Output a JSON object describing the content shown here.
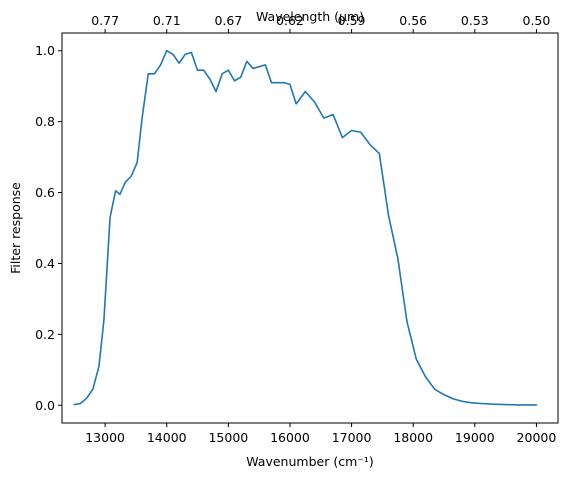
{
  "chart_data": {
    "type": "line",
    "xlabel": "Wavenumber (cm⁻¹)",
    "ylabel": "Filter response",
    "top_xlabel": "Wavelength (μm)",
    "xlim": [
      12300,
      20350
    ],
    "ylim": [
      -0.05,
      1.05
    ],
    "x_ticks": [
      13000,
      14000,
      15000,
      16000,
      17000,
      18000,
      19000,
      20000
    ],
    "y_ticks": [
      0.0,
      0.2,
      0.4,
      0.6,
      0.8,
      1.0
    ],
    "y_tick_labels": [
      "0.0",
      "0.2",
      "0.4",
      "0.6",
      "0.8",
      "1.0"
    ],
    "top_ticks": [
      {
        "wavenumber": 13000,
        "label": "0.77"
      },
      {
        "wavenumber": 14000,
        "label": "0.71"
      },
      {
        "wavenumber": 15000,
        "label": "0.67"
      },
      {
        "wavenumber": 16000,
        "label": "0.62"
      },
      {
        "wavenumber": 17000,
        "label": "0.59"
      },
      {
        "wavenumber": 18000,
        "label": "0.56"
      },
      {
        "wavenumber": 19000,
        "label": "0.53"
      },
      {
        "wavenumber": 20000,
        "label": "0.50"
      }
    ],
    "grid": false,
    "color": "#1f77b4",
    "series": [
      {
        "x": [
          12500,
          12600,
          12700,
          12800,
          12900,
          12980,
          13080,
          13170,
          13240,
          13330,
          13420,
          13520,
          13600,
          13700,
          13800,
          13900,
          14000,
          14100,
          14200,
          14300,
          14400,
          14500,
          14600,
          14700,
          14800,
          14900,
          15000,
          15100,
          15200,
          15300,
          15400,
          15500,
          15600,
          15700,
          15800,
          15900,
          16000,
          16100,
          16250,
          16400,
          16550,
          16700,
          16850,
          17000,
          17150,
          17300,
          17450,
          17600,
          17750,
          17900,
          18050,
          18200,
          18350,
          18500,
          18650,
          18800,
          18950,
          19100,
          19300,
          19500,
          19700,
          20000
        ],
        "y": [
          0.002,
          0.005,
          0.02,
          0.045,
          0.11,
          0.24,
          0.53,
          0.605,
          0.595,
          0.63,
          0.645,
          0.685,
          0.81,
          0.935,
          0.935,
          0.96,
          1.0,
          0.99,
          0.965,
          0.99,
          0.995,
          0.945,
          0.945,
          0.92,
          0.885,
          0.935,
          0.945,
          0.915,
          0.925,
          0.97,
          0.95,
          0.955,
          0.96,
          0.91,
          0.91,
          0.91,
          0.905,
          0.85,
          0.885,
          0.855,
          0.81,
          0.82,
          0.755,
          0.775,
          0.77,
          0.735,
          0.71,
          0.535,
          0.415,
          0.235,
          0.13,
          0.08,
          0.045,
          0.03,
          0.018,
          0.011,
          0.007,
          0.005,
          0.003,
          0.002,
          0.001,
          0.001
        ]
      }
    ]
  }
}
